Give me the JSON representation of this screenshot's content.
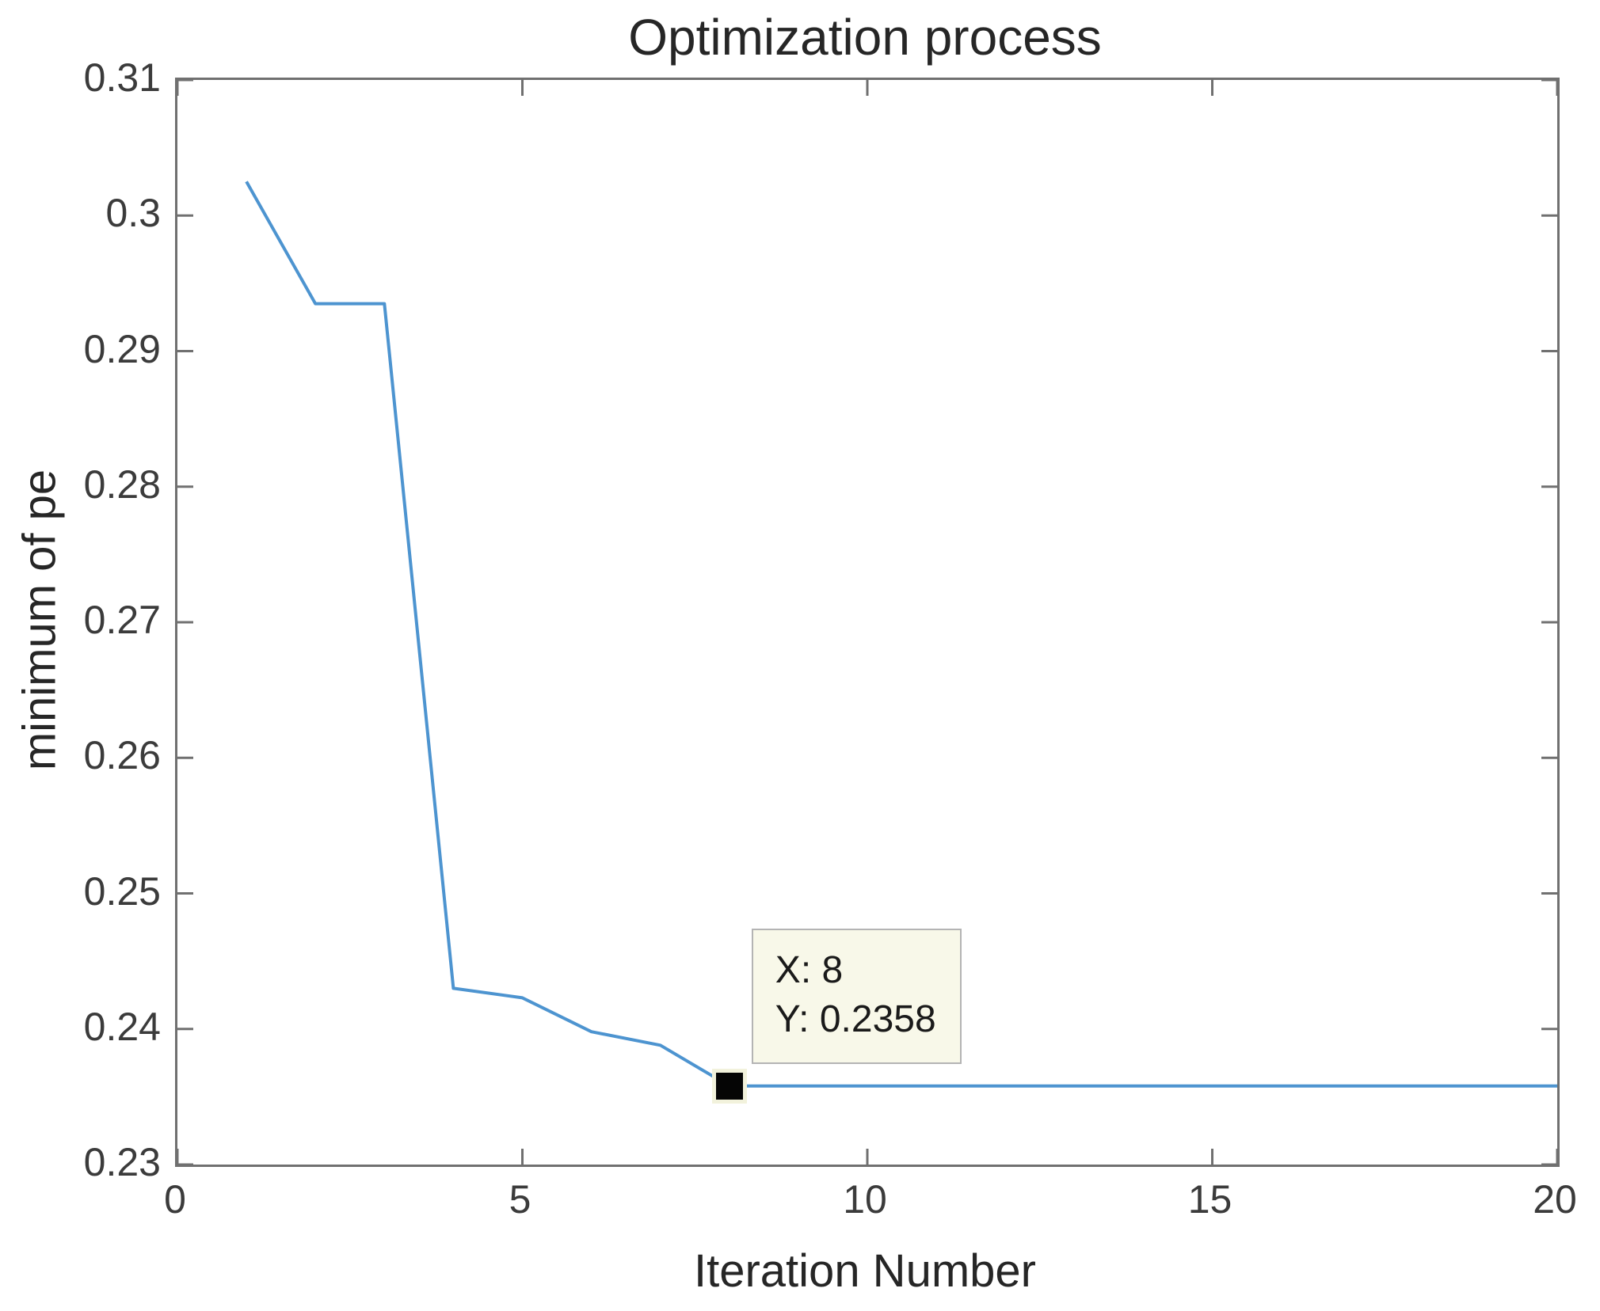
{
  "figure": {
    "background": "#ffffff"
  },
  "chart_data": {
    "type": "line",
    "title": "Optimization process",
    "xlabel": "Iteration Number",
    "ylabel": "minimum of pe",
    "xlim": [
      0,
      20
    ],
    "ylim": [
      0.23,
      0.31
    ],
    "x_ticks": [
      0,
      5,
      10,
      15,
      20
    ],
    "x_tick_labels": [
      "0",
      "5",
      "10",
      "15",
      "20"
    ],
    "y_ticks": [
      0.23,
      0.24,
      0.25,
      0.26,
      0.27,
      0.28,
      0.29,
      0.3,
      0.31
    ],
    "y_tick_labels": [
      "0.23",
      "0.24",
      "0.25",
      "0.26",
      "0.27",
      "0.28",
      "0.29",
      "0.3",
      "0.31"
    ],
    "grid": false,
    "legend": null,
    "box": true,
    "tick_direction": "in",
    "series": [
      {
        "name": "minimum of pe",
        "x": [
          1,
          2,
          3,
          4,
          5,
          6,
          7,
          8,
          9,
          10,
          11,
          12,
          13,
          14,
          15,
          16,
          17,
          18,
          19,
          20
        ],
        "y": [
          0.3025,
          0.2935,
          0.2935,
          0.243,
          0.2423,
          0.2398,
          0.2388,
          0.2358,
          0.2358,
          0.2358,
          0.2358,
          0.2358,
          0.2358,
          0.2358,
          0.2358,
          0.2358,
          0.2358,
          0.2358,
          0.2358,
          0.2358
        ]
      }
    ],
    "datatip": {
      "x": 8,
      "y": 0.2358,
      "line1": "X: 8",
      "line2": "Y: 0.2358"
    },
    "colors": {
      "line": "#4d94d0",
      "axis": "#707070",
      "tick_label": "#3b3b3b",
      "text": "#262626",
      "datatip_bg": "#f8f8e9",
      "datatip_border": "#b4b4b4",
      "datatip_text": "#1a1a1a",
      "marker_fill": "#050505",
      "marker_edge": "#f2f2dc"
    }
  }
}
